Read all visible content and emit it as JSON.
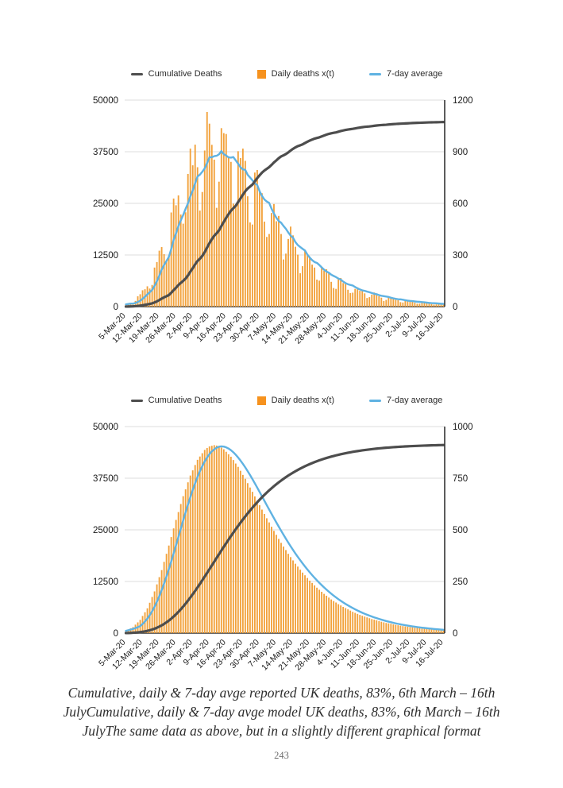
{
  "page": {
    "number": "243"
  },
  "caption": {
    "lines": [
      "Cumulative, daily & 7-day avge reported UK deaths, 83%, 6th March – 16th",
      "JulyCumulative, daily & 7-day avge model UK deaths, 83%, 6th March – 16th",
      "JulyThe same data as above, but in a slightly different graphical format"
    ]
  },
  "colors": {
    "bar": "#f2a23c",
    "bar_legend": "#f6921e",
    "avg7_line": "#5fb2e2",
    "cumulative_line": "#4d4d4d",
    "gridline": "#dcdcdc",
    "axis": "#333333"
  },
  "chart_data": [
    {
      "type": "bar+line combo",
      "title": "Cumulative, daily & 7-day avge reported UK deaths",
      "legend": [
        {
          "label": "Cumulative Deaths",
          "shape": "line",
          "color": "#4d4d4d"
        },
        {
          "label": "Daily deaths x(t)",
          "shape": "square",
          "color": "#f6921e"
        },
        {
          "label": "7-day average",
          "shape": "line",
          "color": "#5fb2e2"
        }
      ],
      "left_axis": {
        "ticks": [
          0,
          12500,
          25000,
          37500,
          50000
        ],
        "max": 50000,
        "series": "Cumulative Deaths"
      },
      "right_axis": {
        "ticks": [
          0,
          300,
          600,
          900,
          1200
        ],
        "max": 1200,
        "series": "Daily deaths x(t), 7-day average"
      },
      "x_tick_labels": [
        "5-Mar-20",
        "12-Mar-20",
        "19-Mar-20",
        "26-Mar-20",
        "2-Apr-20",
        "9-Apr-20",
        "16-Apr-20",
        "23-Apr-20",
        "30-Apr-20",
        "7-May-20",
        "14-May-20",
        "21-May-20",
        "28-May-20",
        "4-Jun-20",
        "11-Jun-20",
        "18-Jun-20",
        "25-Jun-20",
        "2-Jul-20",
        "9-Jul-20",
        "16-Jul-20"
      ],
      "x_tick_interval_days": 7,
      "daily_values": [
        13,
        18,
        22,
        18,
        33,
        60,
        72,
        95,
        101,
        118,
        105,
        126,
        227,
        259,
        325,
        346,
        305,
        266,
        296,
        547,
        628,
        589,
        646,
        535,
        482,
        548,
        771,
        918,
        821,
        941,
        810,
        558,
        666,
        907,
        1131,
        1063,
        940,
        854,
        574,
        726,
        1037,
        1008,
        1003,
        870,
        841,
        598,
        591,
        903,
        863,
        918,
        847,
        641,
        489,
        477,
        779,
        794,
        666,
        659,
        494,
        405,
        422,
        544,
        596,
        496,
        527,
        422,
        274,
        308,
        393,
        465,
        414,
        348,
        302,
        194,
        235,
        323,
        302,
        290,
        244,
        227,
        157,
        151,
        224,
        209,
        217,
        195,
        144,
        108,
        103,
        165,
        166,
        137,
        133,
        98,
        79,
        81,
        103,
        112,
        92,
        97,
        77,
        50,
        55,
        70,
        82,
        73,
        60,
        52,
        33,
        39,
        54,
        51,
        48,
        40,
        37,
        26,
        24,
        36,
        34,
        35,
        32,
        23,
        17,
        17,
        26,
        26,
        22,
        21,
        15,
        12,
        13,
        16,
        18,
        15
      ],
      "derived": {
        "avg7": "trailing 7-day mean of daily_values",
        "cumulative": "running sum of daily_values"
      }
    },
    {
      "type": "bar+line combo",
      "title": "Cumulative, daily & 7-day avge model UK deaths",
      "legend": [
        {
          "label": "Cumulative Deaths",
          "shape": "line",
          "color": "#4d4d4d"
        },
        {
          "label": "Daily deaths x(t)",
          "shape": "square",
          "color": "#f6921e"
        },
        {
          "label": "7-day average",
          "shape": "line",
          "color": "#5fb2e2"
        }
      ],
      "left_axis": {
        "ticks": [
          0,
          12500,
          25000,
          37500,
          50000
        ],
        "max": 50000,
        "series": "Cumulative Deaths"
      },
      "right_axis": {
        "ticks": [
          0,
          250,
          500,
          750,
          1000
        ],
        "max": 1000,
        "series": "Daily deaths x(t), 7-day average"
      },
      "x_tick_labels": [
        "5-Mar-20",
        "12-Mar-20",
        "19-Mar-20",
        "26-Mar-20",
        "2-Apr-20",
        "9-Apr-20",
        "16-Apr-20",
        "23-Apr-20",
        "30-Apr-20",
        "7-May-20",
        "14-May-20",
        "21-May-20",
        "28-May-20",
        "4-Jun-20",
        "11-Jun-20",
        "18-Jun-20",
        "25-Jun-20",
        "2-Jul-20",
        "9-Jul-20",
        "16-Jul-20"
      ],
      "x_tick_interval_days": 7,
      "daily_values": [
        11,
        17,
        23,
        29,
        41,
        52,
        64,
        83,
        101,
        120,
        147,
        175,
        202,
        236,
        271,
        305,
        345,
        384,
        424,
        465,
        507,
        548,
        586,
        625,
        663,
        696,
        730,
        763,
        788,
        814,
        839,
        855,
        871,
        887,
        896,
        904,
        907,
        910,
        908,
        905,
        898,
        890,
        878,
        866,
        854,
        838,
        821,
        805,
        786,
        766,
        747,
        726,
        705,
        684,
        662,
        641,
        619,
        598,
        577,
        556,
        536,
        515,
        495,
        476,
        456,
        437,
        419,
        402,
        384,
        368,
        352,
        336,
        322,
        307,
        293,
        280,
        267,
        254,
        243,
        231,
        220,
        210,
        200,
        190,
        181,
        172,
        163,
        155,
        148,
        140,
        134,
        127,
        121,
        115,
        109,
        103,
        98,
        93,
        88,
        84,
        80,
        76,
        72,
        68,
        65,
        62,
        58,
        55,
        52,
        49,
        47,
        45,
        42,
        40,
        38,
        36,
        34,
        32,
        31,
        29,
        28,
        26,
        25,
        24,
        22,
        21,
        20,
        19,
        18,
        17,
        16,
        15,
        15,
        14
      ],
      "derived": {
        "avg7": "trailing 7-day mean of daily_values",
        "cumulative": "running sum of daily_values"
      }
    }
  ]
}
